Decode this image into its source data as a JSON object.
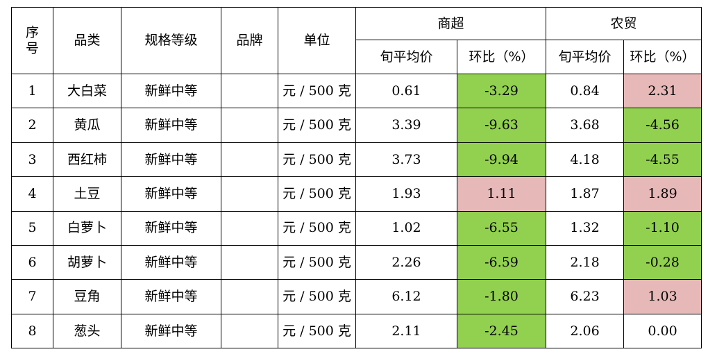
{
  "headers": {
    "seq": "序号",
    "category": "品类",
    "grade": "规格等级",
    "brand": "品牌",
    "unit": "单位",
    "supermarket": "商超",
    "market": "农贸",
    "avg_price": "旬平均价",
    "change": "环比（%）"
  },
  "colors": {
    "increase": "#e7b8b8",
    "decrease": "#92d050"
  },
  "rows": [
    {
      "seq": "1",
      "category": "大白菜",
      "grade": "新鲜中等",
      "brand": "",
      "unit": "元 / 500 克",
      "sm_price": "0.61",
      "sm_change": "-3.29",
      "sm_trend": "down",
      "mk_price": "0.84",
      "mk_change": "2.31",
      "mk_trend": "up"
    },
    {
      "seq": "2",
      "category": "黄瓜",
      "grade": "新鲜中等",
      "brand": "",
      "unit": "元 / 500 克",
      "sm_price": "3.39",
      "sm_change": "-9.63",
      "sm_trend": "down",
      "mk_price": "3.68",
      "mk_change": "-4.56",
      "mk_trend": "down"
    },
    {
      "seq": "3",
      "category": "西红柿",
      "grade": "新鲜中等",
      "brand": "",
      "unit": "元 / 500 克",
      "sm_price": "3.73",
      "sm_change": "-9.94",
      "sm_trend": "down",
      "mk_price": "4.18",
      "mk_change": "-4.55",
      "mk_trend": "down"
    },
    {
      "seq": "4",
      "category": "土豆",
      "grade": "新鲜中等",
      "brand": "",
      "unit": "元 / 500 克",
      "sm_price": "1.93",
      "sm_change": "1.11",
      "sm_trend": "up",
      "mk_price": "1.87",
      "mk_change": "1.89",
      "mk_trend": "up"
    },
    {
      "seq": "5",
      "category": "白萝卜",
      "grade": "新鲜中等",
      "brand": "",
      "unit": "元 / 500 克",
      "sm_price": "1.02",
      "sm_change": "-6.55",
      "sm_trend": "down",
      "mk_price": "1.32",
      "mk_change": "-1.10",
      "mk_trend": "down"
    },
    {
      "seq": "6",
      "category": "胡萝卜",
      "grade": "新鲜中等",
      "brand": "",
      "unit": "元 / 500 克",
      "sm_price": "2.26",
      "sm_change": "-6.59",
      "sm_trend": "down",
      "mk_price": "2.18",
      "mk_change": "-0.28",
      "mk_trend": "down"
    },
    {
      "seq": "7",
      "category": "豆角",
      "grade": "新鲜中等",
      "brand": "",
      "unit": "元 / 500 克",
      "sm_price": "6.12",
      "sm_change": "-1.80",
      "sm_trend": "down",
      "mk_price": "6.23",
      "mk_change": "1.03",
      "mk_trend": "up"
    },
    {
      "seq": "8",
      "category": "葱头",
      "grade": "新鲜中等",
      "brand": "",
      "unit": "元 / 500 克",
      "sm_price": "2.11",
      "sm_change": "-2.45",
      "sm_trend": "down",
      "mk_price": "2.06",
      "mk_change": "0.00",
      "mk_trend": "flat"
    }
  ]
}
